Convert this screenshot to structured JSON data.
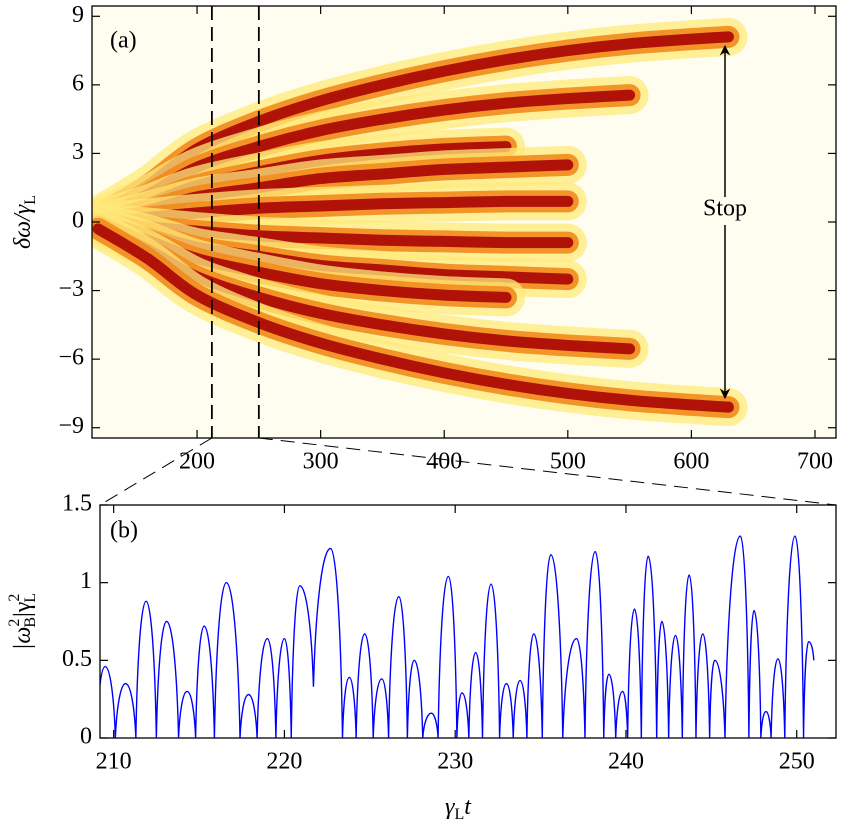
{
  "chart_data": [
    {
      "type": "line",
      "label": "(a)",
      "annotation": "Stop",
      "glow": true,
      "ylabel": [
        "δω/γ",
        "L"
      ],
      "x": [
        120,
        160,
        200,
        250,
        300,
        350,
        400,
        450,
        500,
        550,
        600,
        630
      ],
      "series": [
        {
          "color": "#b01208",
          "values": [
            0.3,
            1.6,
            3.2,
            4.4,
            5.3,
            6.0,
            6.6,
            7.1,
            7.5,
            7.8,
            8.0,
            8.1
          ]
        },
        {
          "color": "#b01208",
          "values": [
            0.2,
            1.2,
            2.4,
            3.3,
            4.0,
            4.5,
            4.9,
            5.2,
            5.4,
            5.55,
            null,
            null
          ]
        },
        {
          "color": "#b01208",
          "values": [
            0.1,
            0.8,
            1.6,
            2.2,
            2.7,
            3.0,
            3.2,
            3.3,
            null,
            null,
            null,
            null
          ]
        },
        {
          "color": "#b01208",
          "values": [
            0,
            0.5,
            1.1,
            1.5,
            1.9,
            2.1,
            2.3,
            2.4,
            2.5,
            null,
            null,
            null
          ]
        },
        {
          "color": "#b01208",
          "values": [
            0,
            0.2,
            0.4,
            0.6,
            0.7,
            0.8,
            0.85,
            0.9,
            0.9,
            null,
            null,
            null
          ]
        },
        {
          "color": "#b01208",
          "values": [
            0,
            -0.2,
            -0.4,
            -0.6,
            -0.7,
            -0.8,
            -0.85,
            -0.9,
            -0.9,
            null,
            null,
            null
          ]
        },
        {
          "color": "#b01208",
          "values": [
            0,
            -0.5,
            -1.1,
            -1.5,
            -1.9,
            -2.1,
            -2.3,
            -2.4,
            -2.5,
            null,
            null,
            null
          ]
        },
        {
          "color": "#b01208",
          "values": [
            -0.1,
            -0.8,
            -1.6,
            -2.2,
            -2.7,
            -3.0,
            -3.2,
            -3.3,
            null,
            null,
            null,
            null
          ]
        },
        {
          "color": "#b01208",
          "values": [
            -0.2,
            -1.2,
            -2.4,
            -3.3,
            -4.0,
            -4.5,
            -4.9,
            -5.2,
            -5.4,
            -5.55,
            null,
            null
          ]
        },
        {
          "color": "#b01208",
          "values": [
            -0.3,
            -1.6,
            -3.2,
            -4.4,
            -5.3,
            -6.0,
            -6.6,
            -7.1,
            -7.5,
            -7.8,
            -8.0,
            -8.1
          ]
        }
      ],
      "window": [
        212,
        250
      ],
      "xlim": [
        115,
        717
      ],
      "xticks": [
        200,
        300,
        400,
        500,
        600,
        700
      ],
      "ylim": [
        -9.45,
        9.45
      ],
      "yticks": [
        {
          "value": -9,
          "label": "−9"
        },
        {
          "value": -6,
          "label": "−6"
        },
        {
          "value": -3,
          "label": "−3"
        },
        0,
        3,
        6,
        9
      ]
    },
    {
      "type": "line",
      "label": "(b)",
      "glow": false,
      "ylabel": [
        "|ω",
        "2",
        "B",
        "|γ",
        "2",
        "L"
      ],
      "xlabel": [
        "γ",
        "L",
        "t"
      ],
      "x": [
        209.0,
        209.5,
        210.1,
        210.7,
        211.3,
        211.9,
        212.5,
        213.1,
        213.8,
        214.3,
        214.8,
        215.3,
        215.9,
        216.6,
        217.4,
        217.9,
        218.4,
        219.0,
        219.5,
        220.0,
        220.4,
        220.9,
        221.7,
        222.7,
        223.4,
        223.8,
        224.2,
        224.7,
        225.2,
        225.7,
        226.1,
        226.7,
        227.2,
        227.6,
        228.1,
        228.6,
        229.0,
        229.6,
        230.1,
        230.4,
        230.8,
        231.2,
        231.6,
        232.1,
        232.6,
        233.0,
        233.4,
        233.8,
        234.2,
        234.6,
        235.1,
        235.6,
        236.3,
        237.1,
        237.6,
        238.2,
        238.7,
        239.0,
        239.4,
        239.8,
        240.1,
        240.5,
        240.9,
        241.3,
        241.8,
        242.1,
        242.5,
        242.9,
        243.3,
        243.7,
        244.1,
        244.5,
        244.9,
        245.2,
        245.8,
        246.7,
        247.2,
        247.5,
        247.9,
        248.2,
        248.5,
        248.9,
        249.3,
        249.9,
        250.4,
        250.7,
        251.0
      ],
      "series": [
        {
          "color": "#0000ff",
          "values": [
            0,
            0.46,
            0,
            0.35,
            0,
            0.88,
            0,
            0.75,
            0,
            0.3,
            0,
            0.72,
            0,
            1.0,
            0,
            0.28,
            0,
            0.64,
            0,
            0.64,
            0,
            0.98,
            0.33,
            1.22,
            0,
            0.39,
            0,
            0.67,
            0,
            0.38,
            0,
            0.91,
            0,
            0.5,
            0,
            0.16,
            0,
            1.04,
            0,
            0.29,
            0,
            0.55,
            0,
            0.99,
            0,
            0.35,
            0,
            0.37,
            0,
            0.67,
            0,
            1.18,
            0,
            0.64,
            0,
            1.2,
            0,
            0.41,
            0,
            0.3,
            0,
            0.83,
            0,
            1.17,
            0,
            0.75,
            0,
            0.66,
            0,
            1.05,
            0,
            0.67,
            0,
            0.5,
            0,
            1.3,
            0,
            0.82,
            0,
            0.17,
            0,
            0.51,
            0,
            1.3,
            0,
            0.62,
            0.5
          ]
        }
      ],
      "xlim": [
        209.2,
        252.3
      ],
      "xticks": [
        210,
        220,
        230,
        240,
        250
      ],
      "ylim": [
        0,
        1.5
      ],
      "yticks": [
        0,
        0.5,
        1,
        1.5
      ]
    }
  ]
}
